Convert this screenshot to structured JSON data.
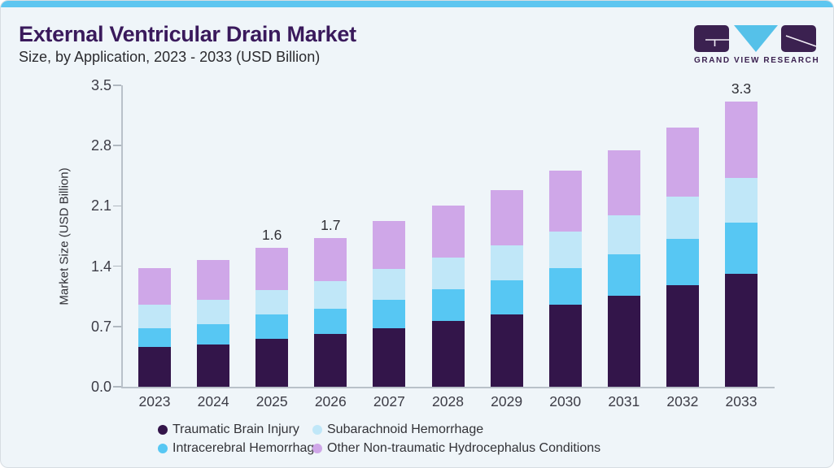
{
  "header": {
    "title": "External Ventricular Drain Market",
    "subtitle": "Size, by Application, 2023 - 2033 (USD Billion)",
    "logo_text": "GRAND VIEW RESEARCH"
  },
  "brand_colors": {
    "accent_strip": "#5ec6f0",
    "card_background": "#eff5f9",
    "title_purple": "#3a1a5c",
    "logo_purple": "#3b2150",
    "logo_cyan": "#55c1e9"
  },
  "chart_data": {
    "type": "bar",
    "stacked": true,
    "title": "",
    "xlabel": "",
    "ylabel": "Market Size (USD Billion)",
    "ylim": [
      0,
      3.5
    ],
    "yticks": [
      0.0,
      0.7,
      1.4,
      2.1,
      2.8,
      3.5
    ],
    "grid": false,
    "legend_position": "bottom",
    "categories": [
      "2023",
      "2024",
      "2025",
      "2026",
      "2027",
      "2028",
      "2029",
      "2030",
      "2031",
      "2032",
      "2033"
    ],
    "series": [
      {
        "name": "Traumatic Brain Injury",
        "color": "#33154a",
        "values": [
          0.46,
          0.49,
          0.56,
          0.61,
          0.68,
          0.76,
          0.84,
          0.95,
          1.06,
          1.18,
          1.31
        ]
      },
      {
        "name": "Intracerebral Hemorrhage",
        "color": "#57c7f3",
        "values": [
          0.22,
          0.24,
          0.28,
          0.3,
          0.33,
          0.37,
          0.4,
          0.43,
          0.48,
          0.54,
          0.6
        ]
      },
      {
        "name": "Subarachnoid Hemorrhage",
        "color": "#c0e7f8",
        "values": [
          0.27,
          0.28,
          0.28,
          0.32,
          0.36,
          0.37,
          0.4,
          0.42,
          0.45,
          0.49,
          0.51
        ]
      },
      {
        "name": "Other Non-traumatic Hydrocephalus Conditions",
        "color": "#cfa7e8",
        "values": [
          0.43,
          0.46,
          0.49,
          0.5,
          0.55,
          0.6,
          0.64,
          0.71,
          0.76,
          0.8,
          0.89
        ]
      }
    ],
    "totals": [
      1.38,
      1.47,
      1.61,
      1.73,
      1.92,
      2.1,
      2.28,
      2.51,
      2.75,
      3.01,
      3.31
    ],
    "bar_labels": {
      "2025": "1.6",
      "2026": "1.7",
      "2033": "3.3"
    },
    "legend_layout": [
      [
        0,
        2
      ],
      [
        1,
        3
      ]
    ]
  }
}
